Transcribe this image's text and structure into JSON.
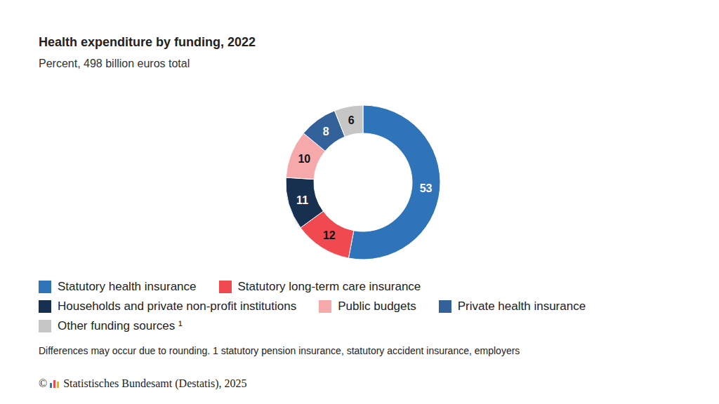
{
  "chart_data": {
    "type": "pie",
    "title": "Health expenditure by funding, 2022",
    "subtitle": "Percent, 498 billion euros total",
    "categories": [
      "Statutory health insurance",
      "Statutory long-term care insurance",
      "Households and private non-profit institutions",
      "Public budgets",
      "Private health insurance",
      "Other funding sources ¹"
    ],
    "values": [
      53,
      12,
      11,
      10,
      8,
      6
    ],
    "colors": [
      "#2f74b8",
      "#f04a50",
      "#17304f",
      "#f6a9ab",
      "#33629a",
      "#c6c6c6"
    ],
    "data_labels": true,
    "legend": "bottom",
    "footnote": "Differences may occur due to rounding. 1 statutory pension insurance, statutory accident insurance, employers",
    "source_symbol": "©",
    "source": "Statistisches Bundesamt (Destatis), 2025"
  }
}
